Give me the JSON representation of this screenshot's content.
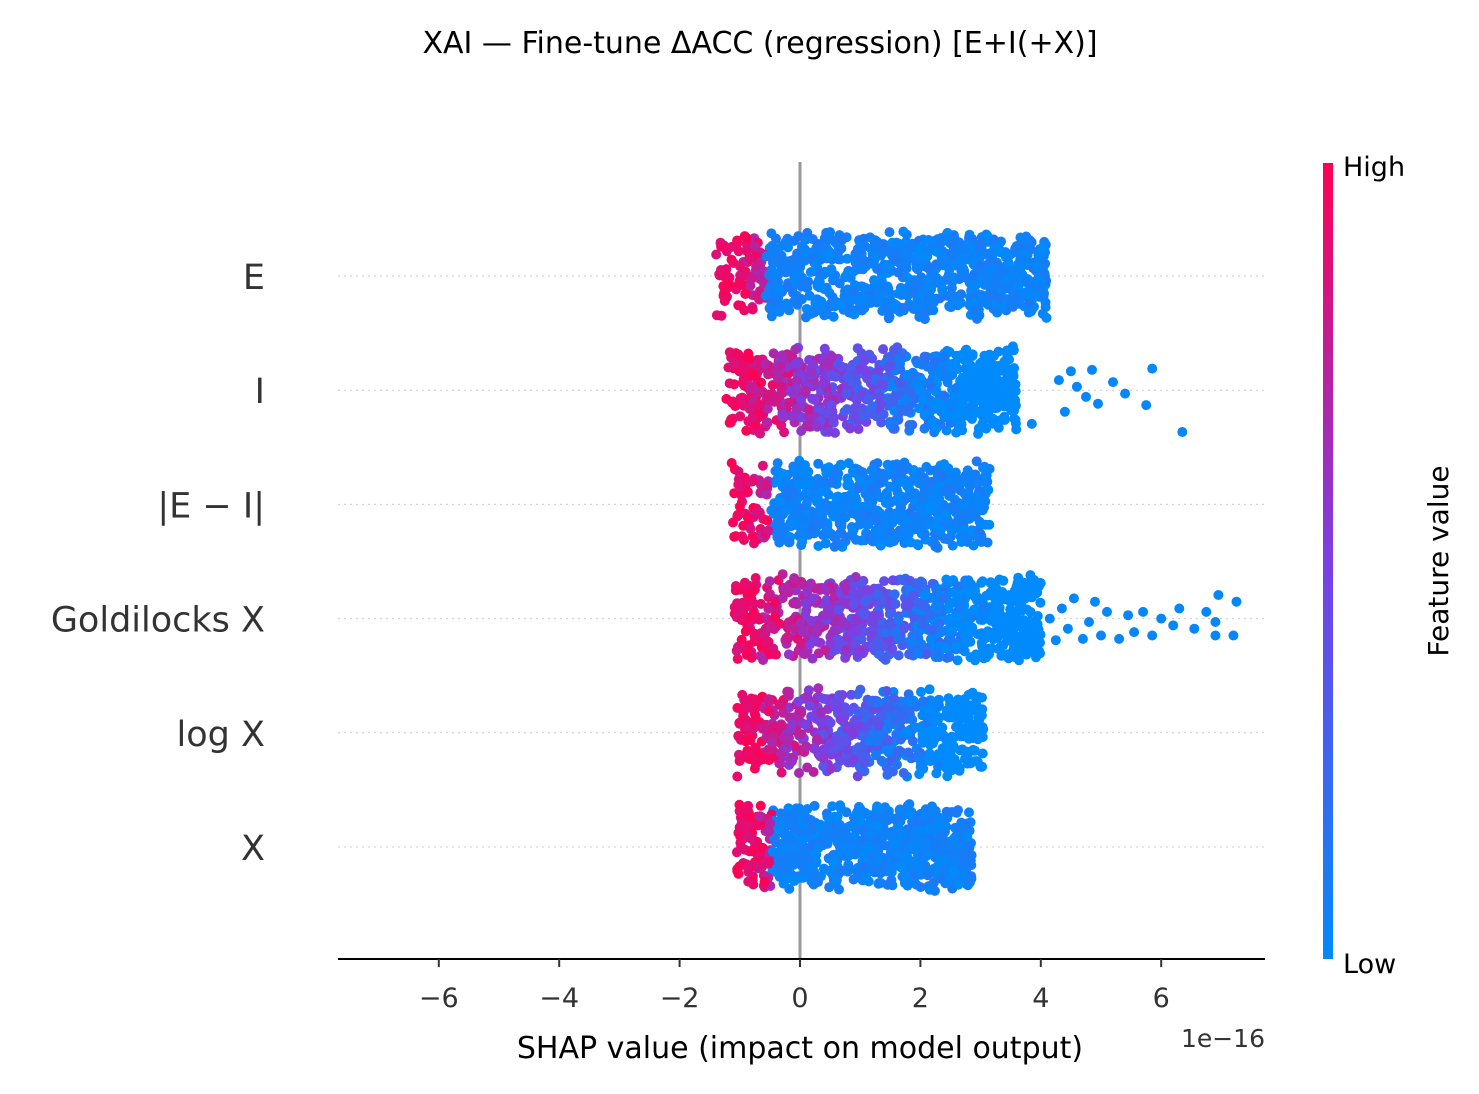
{
  "chart_data": {
    "type": "scatter",
    "subtype": "shap-beeswarm-summary",
    "title": "XAI — Fine-tune ΔACC (regression) [E+I(+X)]",
    "xlabel": "SHAP value (impact on model output)",
    "x_offset_label": "1e−16",
    "x_scale_factor": 1e-16,
    "xlim": [
      -7.7,
      7.7
    ],
    "x_ticks": [
      -6,
      -4,
      -2,
      0,
      2,
      4,
      6
    ],
    "x_tick_labels": [
      "−6",
      "−4",
      "−2",
      "0",
      "2",
      "4",
      "6"
    ],
    "zero_line": 0,
    "features": [
      {
        "name": "E",
        "x_min": -1.4,
        "x_max": 4.1,
        "high_side": "left",
        "n_points": 900,
        "tail": []
      },
      {
        "name": "I",
        "x_min": -1.25,
        "x_max": 3.6,
        "high_side": "left",
        "n_points": 820,
        "tail": [
          [
            6.35,
            0.62
          ],
          [
            5.75,
            0.22
          ],
          [
            5.85,
            -0.32
          ],
          [
            5.4,
            0.05
          ],
          [
            5.2,
            -0.12
          ],
          [
            4.95,
            0.2
          ],
          [
            4.75,
            0.1
          ],
          [
            4.6,
            -0.05
          ],
          [
            4.5,
            -0.28
          ],
          [
            4.85,
            -0.3
          ],
          [
            4.4,
            0.32
          ],
          [
            3.85,
            0.5
          ],
          [
            4.3,
            -0.15
          ]
        ]
      },
      {
        "name": "|E − I|",
        "x_min": -1.15,
        "x_max": 3.15,
        "high_side": "left",
        "n_points": 760,
        "tail": []
      },
      {
        "name": "Goldilocks X",
        "x_min": -1.1,
        "x_max": 4.0,
        "high_side": "left",
        "n_points": 840,
        "tail": [
          [
            7.2,
            0.25
          ],
          [
            7.25,
            -0.25
          ],
          [
            6.95,
            -0.35
          ],
          [
            6.9,
            0.05
          ],
          [
            6.9,
            0.25
          ],
          [
            6.75,
            -0.1
          ],
          [
            6.55,
            0.15
          ],
          [
            6.3,
            -0.15
          ],
          [
            6.2,
            0.1
          ],
          [
            6.0,
            0.0
          ],
          [
            5.85,
            0.25
          ],
          [
            5.7,
            -0.1
          ],
          [
            5.55,
            0.2
          ],
          [
            5.45,
            -0.05
          ],
          [
            5.3,
            0.3
          ],
          [
            5.1,
            -0.1
          ],
          [
            5.0,
            0.25
          ],
          [
            4.9,
            -0.25
          ],
          [
            4.8,
            0.05
          ],
          [
            4.7,
            0.3
          ],
          [
            4.55,
            -0.3
          ],
          [
            4.45,
            0.15
          ],
          [
            4.35,
            -0.15
          ],
          [
            4.25,
            0.32
          ],
          [
            4.15,
            0.0
          ]
        ]
      },
      {
        "name": "log X",
        "x_min": -1.05,
        "x_max": 3.05,
        "high_side": "left",
        "n_points": 620,
        "tail": []
      },
      {
        "name": "X",
        "x_min": -1.05,
        "x_max": 2.85,
        "high_side": "left",
        "n_points": 820,
        "tail": []
      }
    ],
    "colorbar": {
      "label": "Feature value",
      "high_label": "High",
      "low_label": "Low",
      "high_color": "#ff0052",
      "mid_color": "#7b3fe4",
      "low_color": "#008afb"
    },
    "colors": {
      "zero_line": "#999999",
      "row_grid": "#cccccc",
      "axis": "#000000",
      "text": "#333333"
    },
    "grid": false,
    "row_guides": true
  }
}
